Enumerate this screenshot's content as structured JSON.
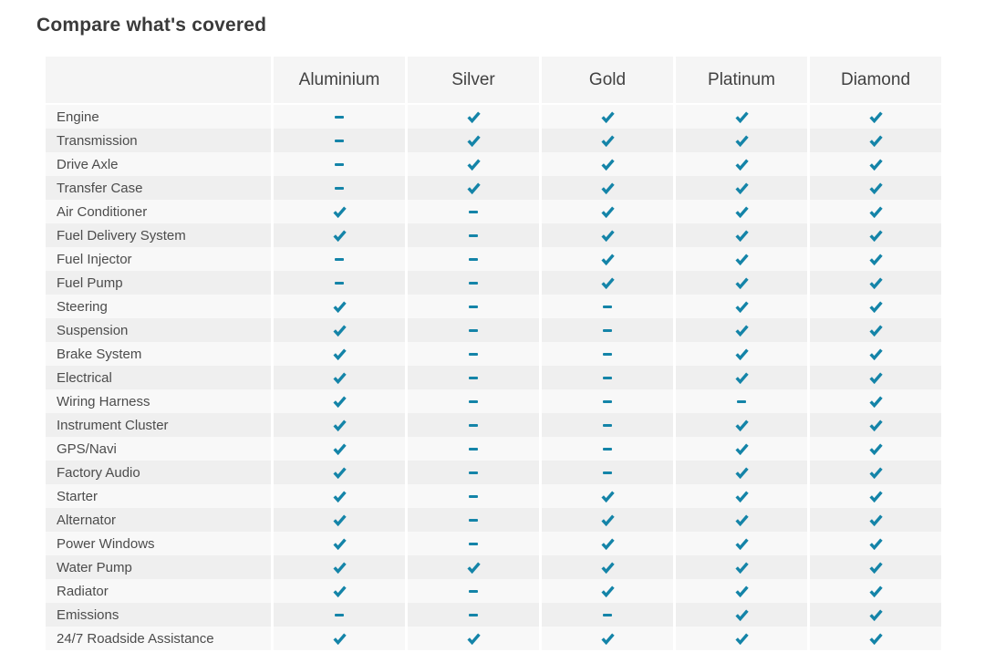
{
  "page": {
    "title": "Compare what's covered"
  },
  "colors": {
    "accent": "#1484a8",
    "header_bg": "#f5f5f5",
    "row_bg_light": "#f8f8f8",
    "row_bg_dark": "#efefef",
    "title_text": "#3a3a3a",
    "header_text": "#414141",
    "label_text": "#4c4c4c"
  },
  "icons": {
    "covered": "check-icon",
    "not_covered": "dash-icon"
  },
  "table": {
    "columns": [
      {
        "label": "Aluminium"
      },
      {
        "label": "Silver"
      },
      {
        "label": "Gold"
      },
      {
        "label": "Platinum"
      },
      {
        "label": "Diamond"
      }
    ],
    "rows": [
      {
        "label": "Engine",
        "coverage": [
          false,
          true,
          true,
          true,
          true
        ]
      },
      {
        "label": "Transmission",
        "coverage": [
          false,
          true,
          true,
          true,
          true
        ]
      },
      {
        "label": "Drive Axle",
        "coverage": [
          false,
          true,
          true,
          true,
          true
        ]
      },
      {
        "label": "Transfer Case",
        "coverage": [
          false,
          true,
          true,
          true,
          true
        ]
      },
      {
        "label": "Air Conditioner",
        "coverage": [
          true,
          false,
          true,
          true,
          true
        ]
      },
      {
        "label": "Fuel Delivery System",
        "coverage": [
          true,
          false,
          true,
          true,
          true
        ]
      },
      {
        "label": "Fuel Injector",
        "coverage": [
          false,
          false,
          true,
          true,
          true
        ]
      },
      {
        "label": "Fuel Pump",
        "coverage": [
          false,
          false,
          true,
          true,
          true
        ]
      },
      {
        "label": "Steering",
        "coverage": [
          true,
          false,
          false,
          true,
          true
        ]
      },
      {
        "label": "Suspension",
        "coverage": [
          true,
          false,
          false,
          true,
          true
        ]
      },
      {
        "label": "Brake System",
        "coverage": [
          true,
          false,
          false,
          true,
          true
        ]
      },
      {
        "label": "Electrical",
        "coverage": [
          true,
          false,
          false,
          true,
          true
        ]
      },
      {
        "label": "Wiring Harness",
        "coverage": [
          true,
          false,
          false,
          false,
          true
        ]
      },
      {
        "label": "Instrument Cluster",
        "coverage": [
          true,
          false,
          false,
          true,
          true
        ]
      },
      {
        "label": "GPS/Navi",
        "coverage": [
          true,
          false,
          false,
          true,
          true
        ]
      },
      {
        "label": "Factory Audio",
        "coverage": [
          true,
          false,
          false,
          true,
          true
        ]
      },
      {
        "label": "Starter",
        "coverage": [
          true,
          false,
          true,
          true,
          true
        ]
      },
      {
        "label": "Alternator",
        "coverage": [
          true,
          false,
          true,
          true,
          true
        ]
      },
      {
        "label": "Power Windows",
        "coverage": [
          true,
          false,
          true,
          true,
          true
        ]
      },
      {
        "label": "Water Pump",
        "coverage": [
          true,
          true,
          true,
          true,
          true
        ]
      },
      {
        "label": "Radiator",
        "coverage": [
          true,
          false,
          true,
          true,
          true
        ]
      },
      {
        "label": "Emissions",
        "coverage": [
          false,
          false,
          false,
          true,
          true
        ]
      },
      {
        "label": "24/7 Roadside Assistance",
        "coverage": [
          true,
          true,
          true,
          true,
          true
        ]
      }
    ]
  }
}
